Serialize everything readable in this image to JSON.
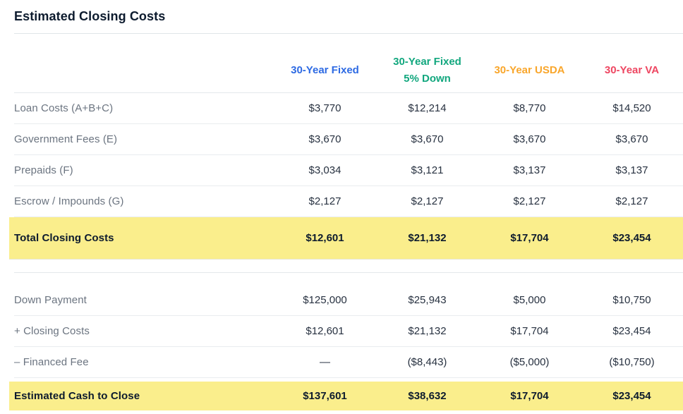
{
  "title": "Estimated Closing Costs",
  "colors": {
    "column_fixed": "#2d6ae3",
    "column_fixed_5_down": "#12a77e",
    "column_usda": "#f9a62b",
    "column_va": "#ee4661",
    "highlight_row_background": "#faee8c"
  },
  "table": {
    "columns": [
      {
        "id": "fixed",
        "lines": [
          "30-Year Fixed"
        ]
      },
      {
        "id": "fixed-5-down",
        "lines": [
          "30-Year Fixed",
          "5% Down"
        ]
      },
      {
        "id": "usda",
        "lines": [
          "30-Year USDA"
        ]
      },
      {
        "id": "va",
        "lines": [
          "30-Year VA"
        ]
      }
    ],
    "sections": [
      {
        "rows": [
          {
            "label": "Loan Costs (A+B+C)",
            "values": [
              "$3,770",
              "$12,214",
              "$8,770",
              "$14,520"
            ]
          },
          {
            "label": "Government Fees (E)",
            "values": [
              "$3,670",
              "$3,670",
              "$3,670",
              "$3,670"
            ]
          },
          {
            "label": "Prepaids (F)",
            "values": [
              "$3,034",
              "$3,121",
              "$3,137",
              "$3,137"
            ]
          },
          {
            "label": "Escrow / Impounds (G)",
            "values": [
              "$2,127",
              "$2,127",
              "$2,127",
              "$2,127"
            ]
          }
        ],
        "total": {
          "label": "Total Closing Costs",
          "values": [
            "$12,601",
            "$21,132",
            "$17,704",
            "$23,454"
          ]
        }
      },
      {
        "rows": [
          {
            "label": "Down Payment",
            "values": [
              "$125,000",
              "$25,943",
              "$5,000",
              "$10,750"
            ]
          },
          {
            "label": "+ Closing Costs",
            "values": [
              "$12,601",
              "$21,132",
              "$17,704",
              "$23,454"
            ]
          },
          {
            "label": "– Financed Fee",
            "values": [
              "—",
              "($8,443)",
              "($5,000)",
              "($10,750)"
            ]
          }
        ],
        "total": {
          "label": "Estimated Cash to Close",
          "values": [
            "$137,601",
            "$38,632",
            "$17,704",
            "$23,454"
          ]
        }
      }
    ]
  }
}
